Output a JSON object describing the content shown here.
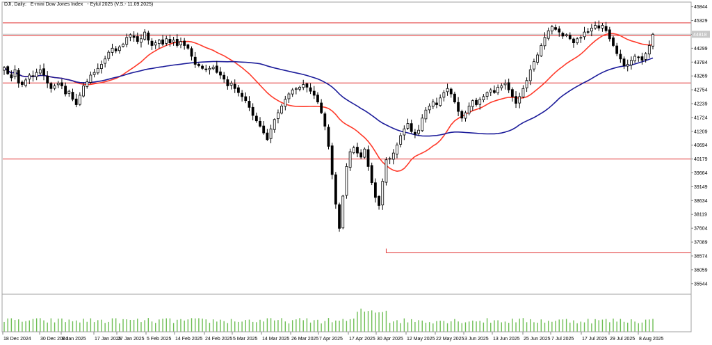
{
  "header": {
    "symbol": "DJI, Daily:",
    "description": "E-mini Dow Jones Index",
    "contract": "- Eylul 2025 (V.S.- 11.09.2025)"
  },
  "colors": {
    "candle": "#000000",
    "ma_fast": "#ff3a2a",
    "ma_slow": "#1c1c9a",
    "hline": "#e03030",
    "volume": "#6fbf55",
    "price_tag_bg": "#c8c8c8",
    "grid_border": "#a0a0a0"
  },
  "chart_data": {
    "type": "candlestick",
    "x_ticks": [
      "18 Dec 2024",
      "30 Dec 2024",
      "8 Jan 2025",
      "17 Jan 2025",
      "27 Jan 2025",
      "5 Feb 2025",
      "14 Feb 2025",
      "24 Feb 2025",
      "5 Mar 2025",
      "14 Mar 2025",
      "26 Mar 2025",
      "7 Apr 2025",
      "17 Apr 2025",
      "30 Apr 2025",
      "12 May 2025",
      "22 May 2025",
      "3 Jun 2025",
      "13 Jun 2025",
      "25 Jun 2025",
      "7 Jul 2025",
      "17 Jul 2025",
      "29 Jul 2025",
      "8 Aug 2025"
    ],
    "y_ticks": [
      45844,
      45329,
      44814,
      44299,
      43784,
      43269,
      42754,
      42239,
      41724,
      41209,
      40694,
      40179,
      39664,
      39149,
      38634,
      38119,
      37604,
      37089,
      36574,
      36059,
      35544
    ],
    "ylim": [
      35150,
      45990
    ],
    "last_price": "44818",
    "horizontal_levels": [
      45242,
      44769,
      43007,
      40179
    ],
    "low_line": {
      "price": 36690,
      "from_index": 106
    },
    "closes": [
      43580,
      43350,
      43200,
      43500,
      43000,
      42950,
      43120,
      43300,
      43250,
      43400,
      43500,
      43300,
      43000,
      42800,
      42900,
      43000,
      42900,
      42600,
      42700,
      42400,
      42200,
      42550,
      42900,
      43050,
      43300,
      43400,
      43550,
      43700,
      43900,
      44150,
      44300,
      44200,
      44350,
      44450,
      44700,
      44800,
      44700,
      44550,
      44650,
      44900,
      44600,
      44400,
      44500,
      44600,
      44450,
      44650,
      44500,
      44600,
      44400,
      44550,
      44400,
      44300,
      44000,
      43700,
      43650,
      43550,
      43500,
      43550,
      43600,
      43400,
      43300,
      43150,
      42900,
      43000,
      42800,
      42650,
      42500,
      42350,
      42100,
      41800,
      41600,
      41400,
      41150,
      40900,
      41300,
      41650,
      41900,
      42150,
      42400,
      42600,
      42750,
      42800,
      42850,
      42950,
      42850,
      42700,
      42550,
      42300,
      41900,
      41400,
      40650,
      39600,
      38500,
      37600,
      38800,
      39900,
      40450,
      40600,
      40400,
      40250,
      40550,
      39900,
      39300,
      38750,
      38450,
      39350,
      40150,
      40200,
      40400,
      40700,
      41050,
      41300,
      41500,
      41200,
      41100,
      41250,
      41700,
      42000,
      42150,
      42300,
      42200,
      42450,
      42650,
      42800,
      42600,
      42300,
      41950,
      41700,
      41900,
      42150,
      42350,
      42200,
      42400,
      42500,
      42650,
      42750,
      42650,
      42850,
      42900,
      43000,
      42750,
      42500,
      42250,
      42500,
      42800,
      43100,
      43500,
      43800,
      44050,
      44400,
      44700,
      44950,
      45100,
      45000,
      44900,
      44750,
      44800,
      44650,
      44500,
      44650,
      44700,
      44900,
      44900,
      45050,
      45150,
      45050,
      45150,
      44950,
      44650,
      44400,
      44100,
      43900,
      43650,
      43700,
      43850,
      44000,
      43950,
      43850,
      44100,
      44400,
      44818
    ]
  },
  "axis_price_labels": [
    "45844",
    "45329",
    "44814",
    "44299",
    "43784",
    "43269",
    "42754",
    "42239",
    "41724",
    "41209",
    "40694",
    "40179",
    "39664",
    "39149",
    "38634",
    "38119",
    "37604",
    "37089",
    "36574",
    "36059",
    "35544"
  ]
}
